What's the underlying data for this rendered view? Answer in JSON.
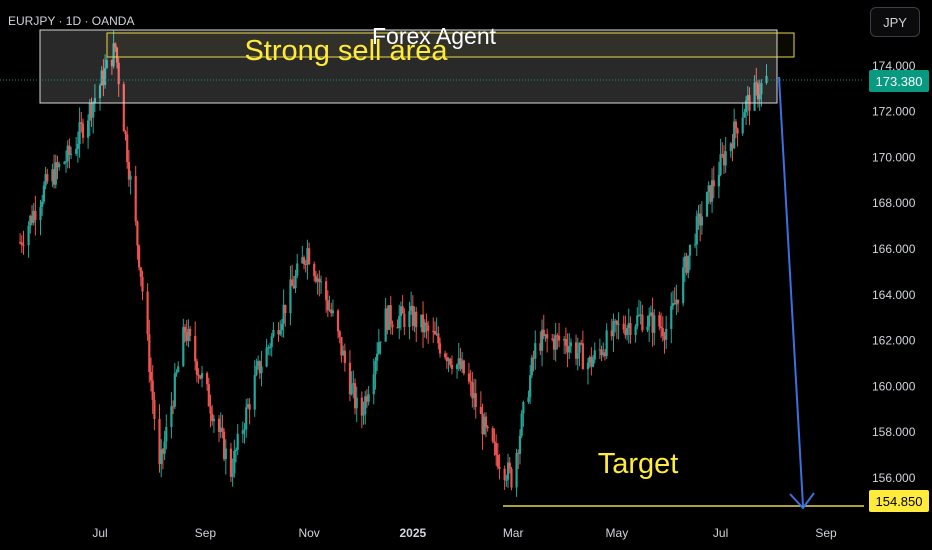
{
  "header": {
    "symbol_label": "EURJPY · 1D · OANDA",
    "currency_button": "JPY"
  },
  "annotations": {
    "watermark": "Forex Agent",
    "sell_zone_label": "Strong sell area",
    "target_label": "Target"
  },
  "price_badges": {
    "last_price": "173.380",
    "target_price": "154.850"
  },
  "colors": {
    "up": "#26a69a",
    "down": "#ef5350",
    "wick": "#8a8a8a",
    "last_badge": "#089981",
    "target_badge": "#ffeb3b",
    "annotation_text": "#ffeb3b",
    "arrow": "#3d6fe0"
  },
  "chart_data": {
    "type": "candlestick",
    "symbol": "EURJPY",
    "timeframe": "1D",
    "source": "OANDA",
    "x_tick_labels": [
      "Jul",
      "Sep",
      "Nov",
      "2025",
      "Mar",
      "May",
      "Jul",
      "Sep"
    ],
    "y_tick_labels": [
      "174.000",
      "172.000",
      "170.000",
      "168.000",
      "166.000",
      "164.000",
      "162.000",
      "160.000",
      "158.000",
      "156.000"
    ],
    "ylim": [
      153.9,
      175.4
    ],
    "last_price": 173.38,
    "target_price": 154.85,
    "sell_zone": {
      "low": 172.4,
      "high": 175.2
    },
    "approx_closes": [
      {
        "date": "2024-05-15",
        "close": 166.3
      },
      {
        "date": "2024-05-31",
        "close": 168.9
      },
      {
        "date": "2024-06-15",
        "close": 170.3
      },
      {
        "date": "2024-06-30",
        "close": 173.0
      },
      {
        "date": "2024-07-10",
        "close": 174.8
      },
      {
        "date": "2024-07-25",
        "close": 165.0
      },
      {
        "date": "2024-08-05",
        "close": 156.3
      },
      {
        "date": "2024-08-20",
        "close": 162.5
      },
      {
        "date": "2024-09-05",
        "close": 159.0
      },
      {
        "date": "2024-09-16",
        "close": 156.3
      },
      {
        "date": "2024-10-01",
        "close": 160.5
      },
      {
        "date": "2024-10-15",
        "close": 163.0
      },
      {
        "date": "2024-10-31",
        "close": 166.0
      },
      {
        "date": "2024-11-15",
        "close": 163.0
      },
      {
        "date": "2024-12-01",
        "close": 158.5
      },
      {
        "date": "2024-12-15",
        "close": 163.0
      },
      {
        "date": "2025-01-01",
        "close": 163.0
      },
      {
        "date": "2025-01-15",
        "close": 162.0
      },
      {
        "date": "2025-02-01",
        "close": 160.5
      },
      {
        "date": "2025-02-15",
        "close": 157.5
      },
      {
        "date": "2025-02-28",
        "close": 156.0
      },
      {
        "date": "2025-03-15",
        "close": 162.0
      },
      {
        "date": "2025-04-01",
        "close": 162.0
      },
      {
        "date": "2025-04-15",
        "close": 161.0
      },
      {
        "date": "2025-05-01",
        "close": 162.5
      },
      {
        "date": "2025-05-15",
        "close": 163.0
      },
      {
        "date": "2025-05-31",
        "close": 162.5
      },
      {
        "date": "2025-06-15",
        "close": 166.5
      },
      {
        "date": "2025-06-30",
        "close": 169.5
      },
      {
        "date": "2025-07-15",
        "close": 172.2
      },
      {
        "date": "2025-07-28",
        "close": 173.38
      }
    ]
  }
}
